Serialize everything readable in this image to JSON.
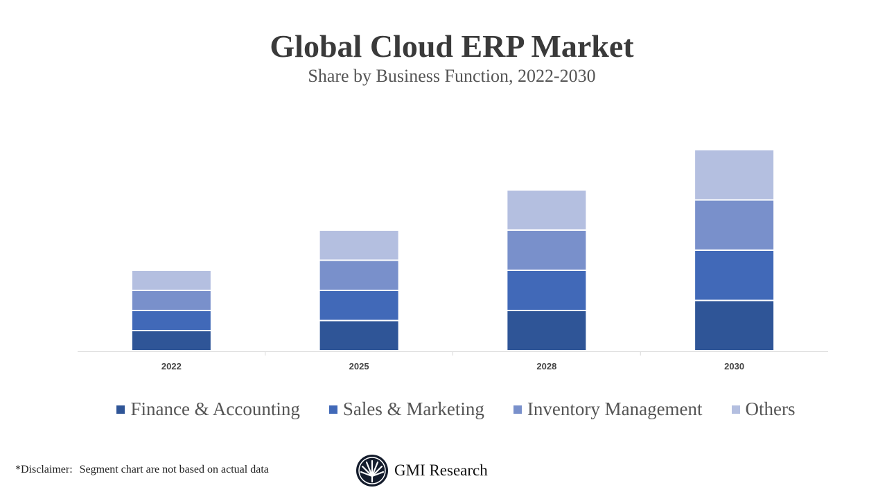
{
  "chart_data": {
    "type": "bar",
    "stacked": true,
    "title": "Global Cloud ERP Market",
    "subtitle": "Share by Business Function, 2022-2030",
    "categories": [
      "2022",
      "2025",
      "2028",
      "2030"
    ],
    "series": [
      {
        "name": "Finance & Accounting",
        "color": "#2F5597",
        "values": [
          1,
          1.5,
          2,
          2.5
        ]
      },
      {
        "name": "Sales & Marketing",
        "color": "#4169B8",
        "values": [
          1,
          1.5,
          2,
          2.5
        ]
      },
      {
        "name": "Inventory Management",
        "color": "#7990CB",
        "values": [
          1,
          1.5,
          2,
          2.5
        ]
      },
      {
        "name": "Others",
        "color": "#B4BFE0",
        "values": [
          1,
          1.5,
          2,
          2.5
        ]
      }
    ],
    "y_axis_visible": false,
    "grid": false,
    "legend_position": "bottom"
  },
  "footer": {
    "disclaimer_label": "*Disclaimer:",
    "disclaimer_text": "Segment chart are not based on actual data",
    "brand": "GMI Research"
  }
}
